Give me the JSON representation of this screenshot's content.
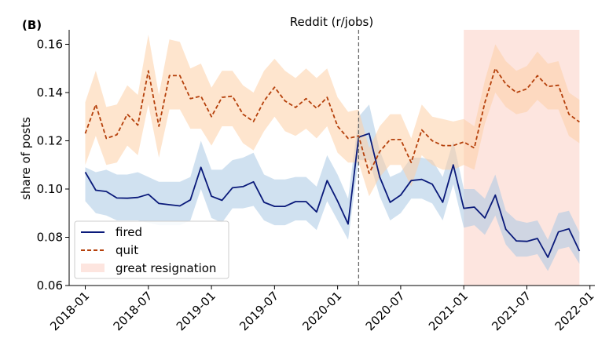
{
  "chart_data": {
    "type": "line",
    "panel_label": "(B)",
    "title": "Reddit (r/jobs)",
    "xlabel": "",
    "ylabel": "share of posts",
    "ylim": [
      0.06,
      0.166
    ],
    "yticks": [
      0.06,
      0.08,
      0.1,
      0.12,
      0.14,
      0.16
    ],
    "ytick_labels": [
      "0.06",
      "0.08",
      "0.10",
      "0.12",
      "0.14",
      "0.16"
    ],
    "xlim": [
      "2017-11-15",
      "2022-01-15"
    ],
    "xticks": [
      "2018-01",
      "2018-07",
      "2019-01",
      "2019-07",
      "2020-01",
      "2020-07",
      "2021-01",
      "2021-07",
      "2022-01"
    ],
    "x": [
      "2018-01",
      "2018-02",
      "2018-03",
      "2018-04",
      "2018-05",
      "2018-06",
      "2018-07",
      "2018-08",
      "2018-09",
      "2018-10",
      "2018-11",
      "2018-12",
      "2019-01",
      "2019-02",
      "2019-03",
      "2019-04",
      "2019-05",
      "2019-06",
      "2019-07",
      "2019-08",
      "2019-09",
      "2019-10",
      "2019-11",
      "2019-12",
      "2020-01",
      "2020-02",
      "2020-03",
      "2020-04",
      "2020-05",
      "2020-06",
      "2020-07",
      "2020-08",
      "2020-09",
      "2020-10",
      "2020-11",
      "2020-12",
      "2021-01",
      "2021-02",
      "2021-03",
      "2021-04",
      "2021-05",
      "2021-06",
      "2021-07",
      "2021-08",
      "2021-09",
      "2021-10",
      "2021-11",
      "2021-12"
    ],
    "series": [
      {
        "name": "fired",
        "color": "#0a1a7a",
        "style": "solid",
        "band_color": "#a9c8e4",
        "values": [
          0.107,
          0.0995,
          0.099,
          0.0963,
          0.0962,
          0.0965,
          0.0978,
          0.094,
          0.0935,
          0.093,
          0.0955,
          0.109,
          0.097,
          0.0953,
          0.1005,
          0.101,
          0.103,
          0.0945,
          0.0928,
          0.0928,
          0.0948,
          0.0948,
          0.0905,
          0.1035,
          0.095,
          0.0855,
          0.1215,
          0.123,
          0.105,
          0.0945,
          0.0975,
          0.1035,
          0.104,
          0.102,
          0.0945,
          0.11,
          0.092,
          0.0925,
          0.088,
          0.0975,
          0.0833,
          0.0785,
          0.0783,
          0.0795,
          0.0717,
          0.0822,
          0.0835,
          0.0743
        ],
        "lower": [
          0.095,
          0.09,
          0.089,
          0.087,
          0.087,
          0.087,
          0.086,
          0.085,
          0.085,
          0.085,
          0.087,
          0.1,
          0.088,
          0.086,
          0.092,
          0.092,
          0.093,
          0.087,
          0.085,
          0.085,
          0.087,
          0.087,
          0.083,
          0.095,
          0.087,
          0.079,
          0.112,
          0.112,
          0.097,
          0.087,
          0.09,
          0.096,
          0.096,
          0.094,
          0.087,
          0.102,
          0.084,
          0.085,
          0.081,
          0.089,
          0.077,
          0.072,
          0.072,
          0.073,
          0.066,
          0.075,
          0.076,
          0.069
        ],
        "upper": [
          0.109,
          0.107,
          0.108,
          0.106,
          0.106,
          0.107,
          0.105,
          0.103,
          0.103,
          0.103,
          0.105,
          0.12,
          0.108,
          0.108,
          0.112,
          0.113,
          0.115,
          0.106,
          0.104,
          0.104,
          0.105,
          0.105,
          0.101,
          0.114,
          0.106,
          0.096,
          0.13,
          0.135,
          0.116,
          0.105,
          0.107,
          0.113,
          0.113,
          0.112,
          0.105,
          0.12,
          0.1,
          0.1,
          0.096,
          0.106,
          0.091,
          0.087,
          0.086,
          0.087,
          0.079,
          0.09,
          0.091,
          0.082
        ]
      },
      {
        "name": "quit",
        "color": "#b5400b",
        "style": "dashed",
        "band_color": "#fdd0a6",
        "values": [
          0.123,
          0.135,
          0.121,
          0.1225,
          0.131,
          0.1265,
          0.149,
          0.126,
          0.147,
          0.147,
          0.1375,
          0.1385,
          0.13,
          0.138,
          0.1385,
          0.131,
          0.128,
          0.1365,
          0.1422,
          0.1365,
          0.1338,
          0.1375,
          0.1335,
          0.138,
          0.126,
          0.121,
          0.122,
          0.1065,
          0.1155,
          0.1205,
          0.1205,
          0.111,
          0.1245,
          0.12,
          0.118,
          0.118,
          0.1195,
          0.117,
          0.1358,
          0.15,
          0.1435,
          0.14,
          0.1415,
          0.147,
          0.1425,
          0.143,
          0.131,
          0.1278
        ],
        "lower": [
          0.11,
          0.122,
          0.11,
          0.111,
          0.118,
          0.114,
          0.135,
          0.113,
          0.133,
          0.133,
          0.125,
          0.125,
          0.118,
          0.126,
          0.126,
          0.119,
          0.116,
          0.124,
          0.13,
          0.124,
          0.122,
          0.125,
          0.121,
          0.126,
          0.115,
          0.111,
          0.111,
          0.097,
          0.105,
          0.11,
          0.11,
          0.101,
          0.114,
          0.11,
          0.108,
          0.108,
          0.11,
          0.108,
          0.127,
          0.14,
          0.134,
          0.131,
          0.132,
          0.137,
          0.133,
          0.133,
          0.122,
          0.119
        ],
        "upper": [
          0.136,
          0.149,
          0.134,
          0.135,
          0.143,
          0.139,
          0.164,
          0.139,
          0.162,
          0.161,
          0.15,
          0.152,
          0.142,
          0.149,
          0.149,
          0.143,
          0.14,
          0.149,
          0.154,
          0.149,
          0.146,
          0.15,
          0.146,
          0.15,
          0.138,
          0.132,
          0.133,
          0.117,
          0.126,
          0.131,
          0.131,
          0.121,
          0.135,
          0.13,
          0.129,
          0.128,
          0.129,
          0.126,
          0.145,
          0.16,
          0.153,
          0.149,
          0.151,
          0.157,
          0.152,
          0.153,
          0.14,
          0.137
        ]
      }
    ],
    "annotations": {
      "vertical_line": {
        "x": "2020-03",
        "style": "dashed",
        "color": "#666666"
      },
      "shaded_region": {
        "label": "great resignation",
        "x_start": "2021-01",
        "x_end": "2021-12",
        "color": "#fde5df"
      }
    },
    "legend": {
      "position": "lower-left",
      "entries": [
        {
          "label": "fired",
          "style": "solid",
          "color": "#0a1a7a"
        },
        {
          "label": "quit",
          "style": "dashed",
          "color": "#b5400b"
        },
        {
          "label": "great resignation",
          "style": "patch",
          "color": "#fde5df"
        }
      ]
    },
    "grid": false
  }
}
